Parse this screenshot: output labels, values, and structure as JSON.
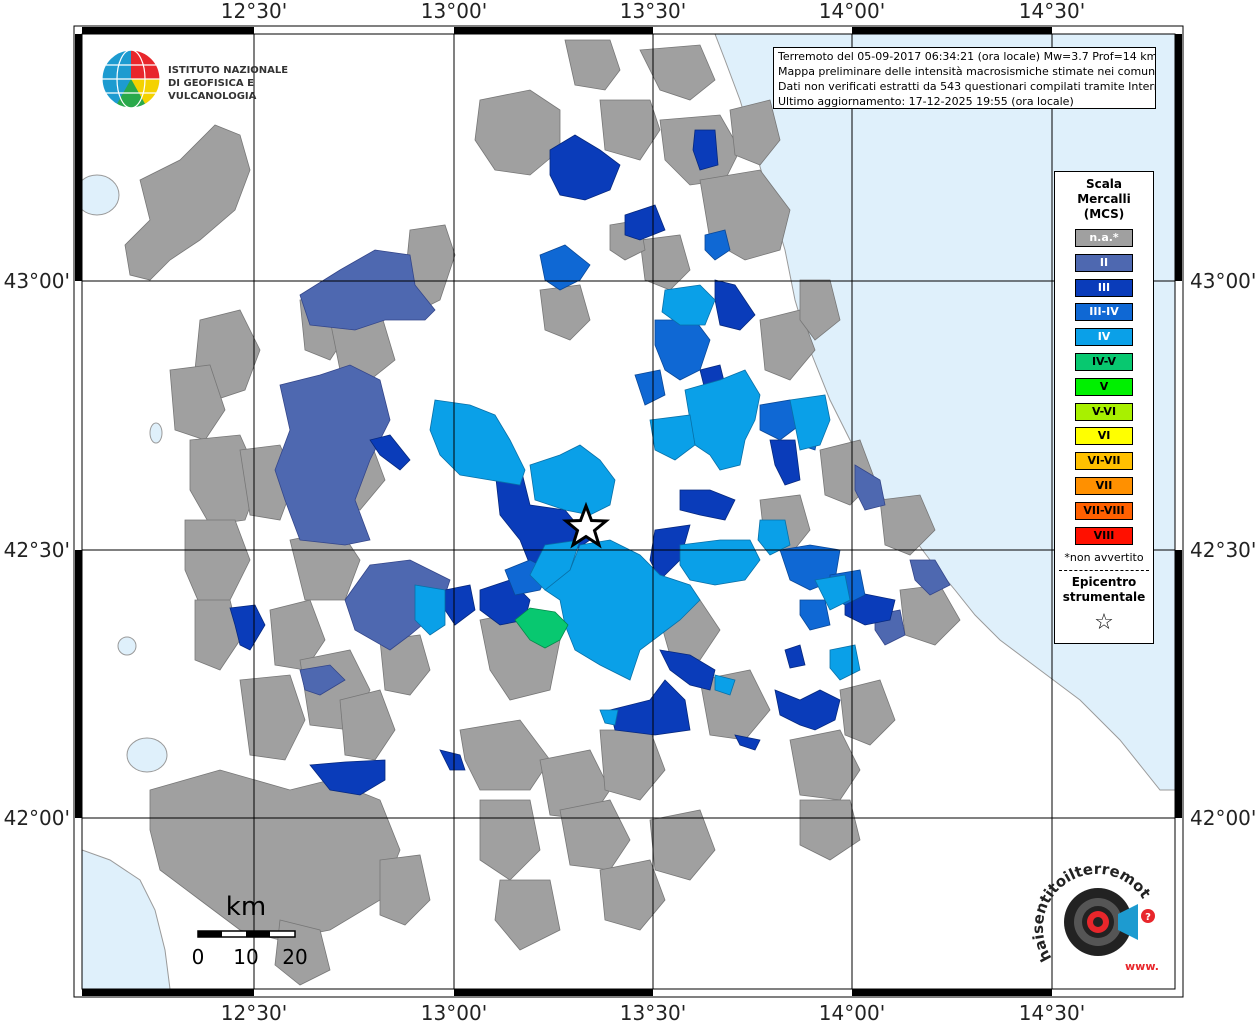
{
  "map": {
    "lon_labels": [
      "12°30'",
      "13°00'",
      "13°30'",
      "14°00'",
      "14°30'"
    ],
    "lat_labels": [
      "43°00'",
      "42°30'",
      "42°00'"
    ],
    "sea_color": "#dff0fb",
    "land_color": "#ffffff",
    "na_color": "#a0a0a0"
  },
  "logo_ingv": {
    "line1": "ISTITUTO NAZIONALE",
    "line2": "DI GEOFISICA E VULCANOLOGIA"
  },
  "info": {
    "line1": "Terremoto del 05-09-2017 06:34:21 (ora locale) Mw=3.7 Prof=14 km",
    "line2": "Mappa preliminare delle intensità macrosismiche stimate nei comuni",
    "line3": "Dati non verificati estratti da 543 questionari compilati tramite Internet.",
    "line4": "Ultimo aggiornamento: 17-12-2025 19:55 (ora locale)"
  },
  "legend": {
    "title_line1": "Scala",
    "title_line2": "Mercalli",
    "title_line3": "(MCS)",
    "items": [
      {
        "label": "n.a.*",
        "color": "#a0a0a0",
        "text_color": "#ffffff"
      },
      {
        "label": "II",
        "color": "#4e68b0",
        "text_color": "#ffffff"
      },
      {
        "label": "III",
        "color": "#0a3cba",
        "text_color": "#ffffff"
      },
      {
        "label": "III-IV",
        "color": "#0f68d4",
        "text_color": "#ffffff"
      },
      {
        "label": "IV",
        "color": "#0aa0e8",
        "text_color": "#ffffff"
      },
      {
        "label": "IV-V",
        "color": "#08c870",
        "text_color": "#000000"
      },
      {
        "label": "V",
        "color": "#00f000",
        "text_color": "#000000"
      },
      {
        "label": "V-VI",
        "color": "#a8f000",
        "text_color": "#000000"
      },
      {
        "label": "VI",
        "color": "#ffff00",
        "text_color": "#000000"
      },
      {
        "label": "VI-VII",
        "color": "#ffc000",
        "text_color": "#000000"
      },
      {
        "label": "VII",
        "color": "#ff9000",
        "text_color": "#000000"
      },
      {
        "label": "VII-VIII",
        "color": "#ff6000",
        "text_color": "#000000"
      },
      {
        "label": "VIII",
        "color": "#ff1000",
        "text_color": "#000000"
      }
    ],
    "note": "*non avvertito",
    "epicenter_line1": "Epicentro",
    "epicenter_line2": "strumentale",
    "epicenter_symbol": "☆"
  },
  "scalebar": {
    "unit": "km",
    "ticks": [
      "0",
      "10",
      "20"
    ]
  },
  "logo_hsit": {
    "text": "haisentitoilterremoto.it",
    "url_text": "www."
  }
}
